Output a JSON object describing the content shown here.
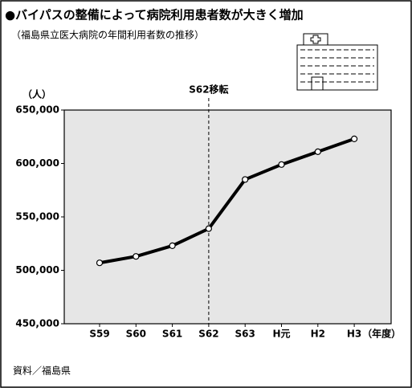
{
  "chart_data": {
    "type": "line",
    "title": "●バイパスの整備によって病院利用患者数が大きく増加",
    "subtitle": "（福島県立医大病院の年間利用者数の推移）",
    "y_label": "（人）",
    "x_label": "（年度）",
    "annotation": "S62移転",
    "source": "資料／福島県",
    "categories": [
      "S59",
      "S60",
      "S61",
      "S62",
      "S63",
      "H元",
      "H2",
      "H3"
    ],
    "values": [
      507000,
      513000,
      523000,
      539000,
      585000,
      599000,
      611000,
      623000
    ],
    "color": "#000000",
    "ylim": [
      450000,
      650000
    ],
    "yticks": [
      {
        "value": 450000,
        "label": "450,000"
      },
      {
        "value": 500000,
        "label": "500,000"
      },
      {
        "value": 550000,
        "label": "550,000"
      },
      {
        "value": 600000,
        "label": "600,000"
      },
      {
        "value": 650000,
        "label": "650,000"
      }
    ],
    "grid": true
  }
}
